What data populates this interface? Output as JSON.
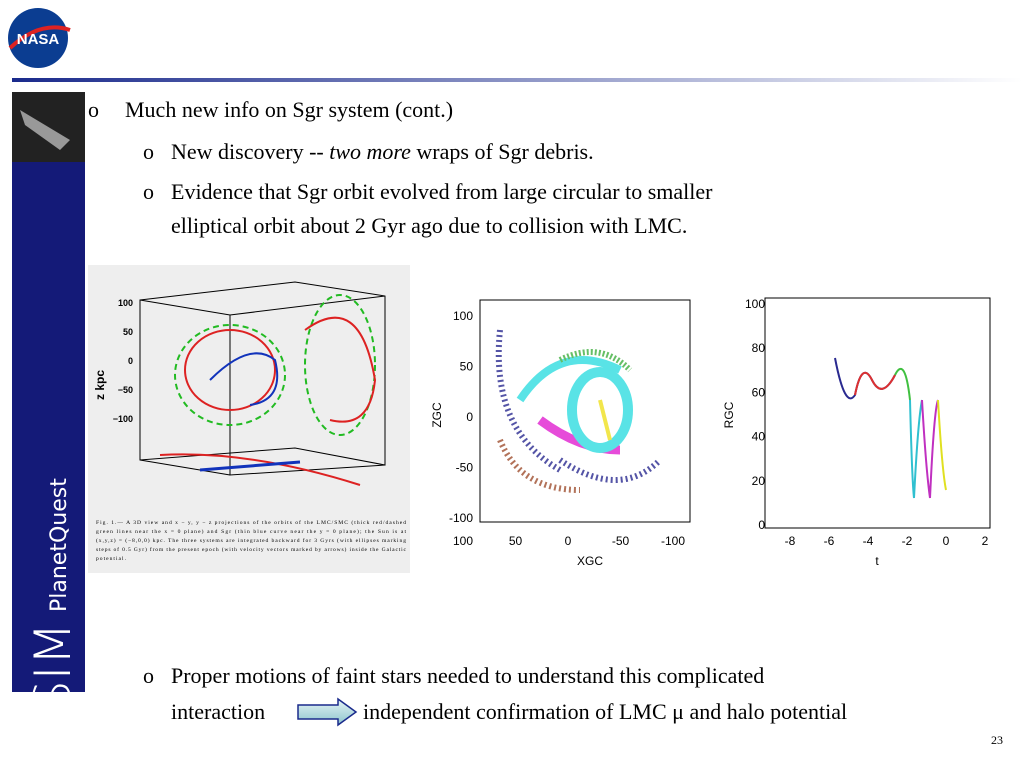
{
  "slide": {
    "sidebar": {
      "logo": "NASA",
      "brand": "SIM",
      "subbrand": "PlanetQuest"
    },
    "bullets": [
      {
        "text": "Much new info on Sgr system (cont.)"
      },
      {
        "pre": "New discovery -- ",
        "em": "two more",
        "post": " wraps of Sgr debris."
      },
      {
        "lines": [
          "Evidence that Sgr orbit evolved from large circular to smaller",
          "elliptical orbit about 2 Gyr ago due to collision with LMC."
        ]
      },
      {
        "lines": [
          "Proper motions of faint stars needed to understand this complicated",
          "interaction"
        ],
        "after_arrow": "independent confirmation of LMC μ  and halo potential"
      }
    ],
    "marker": "o",
    "figures": [
      {
        "yticks": [
          "100",
          "50",
          "0",
          "−50",
          "−100"
        ],
        "ylabel": "z kpc",
        "caption": [
          "Fig. 1.— A 3D view and x − y, y − z projections of the orbits of the LMC/SMC (thick red/dashed",
          "green lines near the x = 0 plane) and Sgr (thin blue curve near the y = 0 plane); the Sun is at",
          "(x,y,z) = (−8,0,0) kpc. The three systems are integrated backward for 3 Gyrs (with ellipses marking",
          "steps of 0.5 Gyr) from the present epoch (with velocity vectors marked by arrows) inside the Galactic",
          "potential."
        ]
      },
      {
        "yticks": [
          "100",
          "50",
          "0",
          "-50",
          "-100"
        ],
        "xticks": [
          "100",
          "50",
          "0",
          "-50",
          "-100"
        ],
        "ylabel": "ZGC",
        "xlabel": "XGC"
      },
      {
        "yticks": [
          "100",
          "80",
          "60",
          "40",
          "20",
          "0"
        ],
        "xticks": [
          "-8",
          "-6",
          "-4",
          "-2",
          "0",
          "2"
        ],
        "ylabel": "RGC",
        "xlabel": "t"
      }
    ],
    "page_number": "23"
  }
}
